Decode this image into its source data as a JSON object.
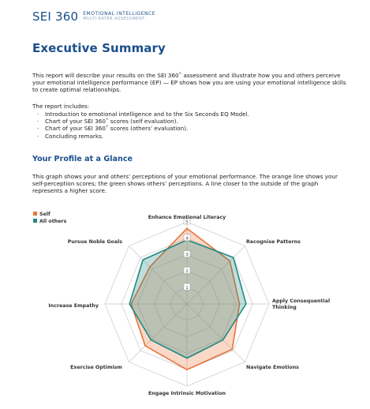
{
  "header": {
    "logo_main": "SEI 360",
    "logo_line1": "EMOTIONAL INTELLIGENCE",
    "logo_line2": "MULTI-RATER ASSESSMENT"
  },
  "page": {
    "title": "Executive Summary",
    "intro": "This report will describe your results on the SEI 360˚ assessment and illustrate how you and others perceive your emotional intelligence performance (EP) — EP shows how you are using your emotional intelligence skills to create optimal relationships.",
    "includes_label": "The report includes:",
    "includes": [
      "Introduction to emotional intelligence and to the Six Seconds EQ Model.",
      "Chart of your SEI 360˚ scores (self evaluation).",
      "Chart of your SEI 360˚ scores (others’ evaluation).",
      "Concluding remarks."
    ],
    "section_heading": "Your Profile at a Glance",
    "section_text": "This graph shows your and others’ perceptions of your emotional performance. The orange line shows your self-perception scores; the green shows others’ perceptions. A line closer to the outside of the graph represents a higher score."
  },
  "chart_data": {
    "type": "radar",
    "categories": [
      "Enhance Emotional Literacy",
      "Recognise Patterns",
      "Apply Consequential Thinking",
      "Navigate Emotions",
      "Engage Intrinsic Motivation",
      "Exercise Optimism",
      "Increase Empathy",
      "Pursue Noble Goals"
    ],
    "scale_labels": [
      "1",
      "2",
      "3",
      "4",
      "5"
    ],
    "rlim": [
      0,
      5
    ],
    "series": [
      {
        "name": "Self",
        "color": "#e8743b",
        "values": [
          4.6,
          3.7,
          3.2,
          3.9,
          4.0,
          3.6,
          3.4,
          3.2
        ]
      },
      {
        "name": "All others",
        "color": "#1e8a82",
        "values": [
          3.9,
          4.0,
          3.6,
          3.1,
          3.3,
          3.1,
          3.5,
          3.8
        ]
      }
    ]
  }
}
